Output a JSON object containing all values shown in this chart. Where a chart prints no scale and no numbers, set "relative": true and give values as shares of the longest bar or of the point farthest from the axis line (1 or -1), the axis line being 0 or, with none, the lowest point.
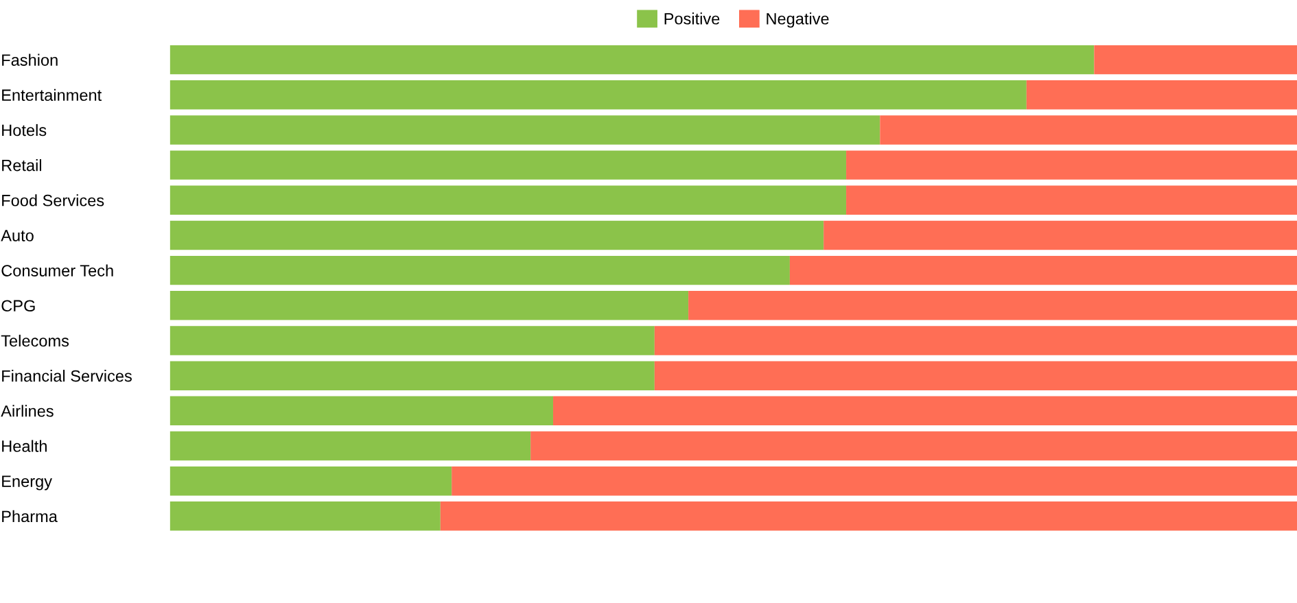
{
  "chart_data": {
    "type": "bar",
    "orientation": "horizontal",
    "stacked": true,
    "relative": true,
    "legend": "top",
    "grid": false,
    "categories": [
      "Fashion",
      "Entertainment",
      "Hotels",
      "Retail",
      "Food Services",
      "Auto",
      "Consumer Tech",
      "CPG",
      "Telecoms",
      "Financial Services",
      "Airlines",
      "Health",
      "Energy",
      "Pharma"
    ],
    "series": [
      {
        "name": "Positive",
        "color": "#8bc34a",
        "values": [
          0.82,
          0.76,
          0.63,
          0.6,
          0.6,
          0.58,
          0.55,
          0.46,
          0.43,
          0.43,
          0.34,
          0.32,
          0.25,
          0.24
        ]
      },
      {
        "name": "Negative",
        "color": "#ff6e55",
        "values": [
          0.18,
          0.24,
          0.37,
          0.4,
          0.4,
          0.42,
          0.45,
          0.54,
          0.57,
          0.57,
          0.66,
          0.68,
          0.75,
          0.76
        ]
      }
    ]
  }
}
